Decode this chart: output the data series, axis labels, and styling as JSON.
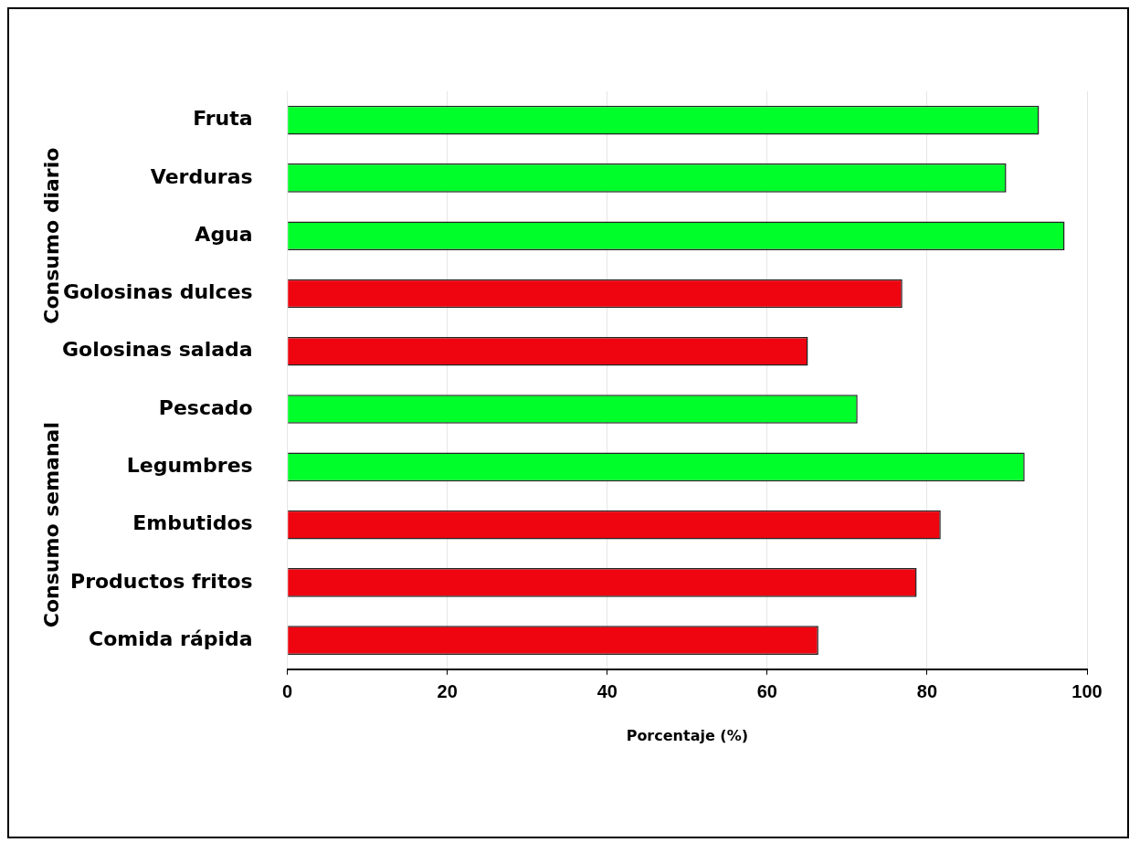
{
  "chart_data": {
    "type": "bar",
    "orientation": "horizontal",
    "categories": [
      "Fruta",
      "Verduras",
      "Agua",
      "Golosinas dulces",
      "Golosinas salada",
      "Pescado",
      "Legumbres",
      "Embutidos",
      "Productos fritos",
      "Comida rápida"
    ],
    "values": [
      94.0,
      89.9,
      97.2,
      76.9,
      65.1,
      71.3,
      92.2,
      81.7,
      78.7,
      66.4
    ],
    "colors": [
      "#00ff2a",
      "#00ff2a",
      "#00ff2a",
      "#ee0510",
      "#ee0510",
      "#00ff2a",
      "#00ff2a",
      "#ee0510",
      "#ee0510",
      "#ee0510"
    ],
    "xlim": [
      0,
      100
    ],
    "xticks": [
      0,
      20,
      40,
      60,
      80,
      100
    ],
    "xlabel": "Porcentaje (%)",
    "grid": "x",
    "legend": false,
    "annotations": [
      "Consumo diario",
      "Consumo semanal"
    ]
  }
}
